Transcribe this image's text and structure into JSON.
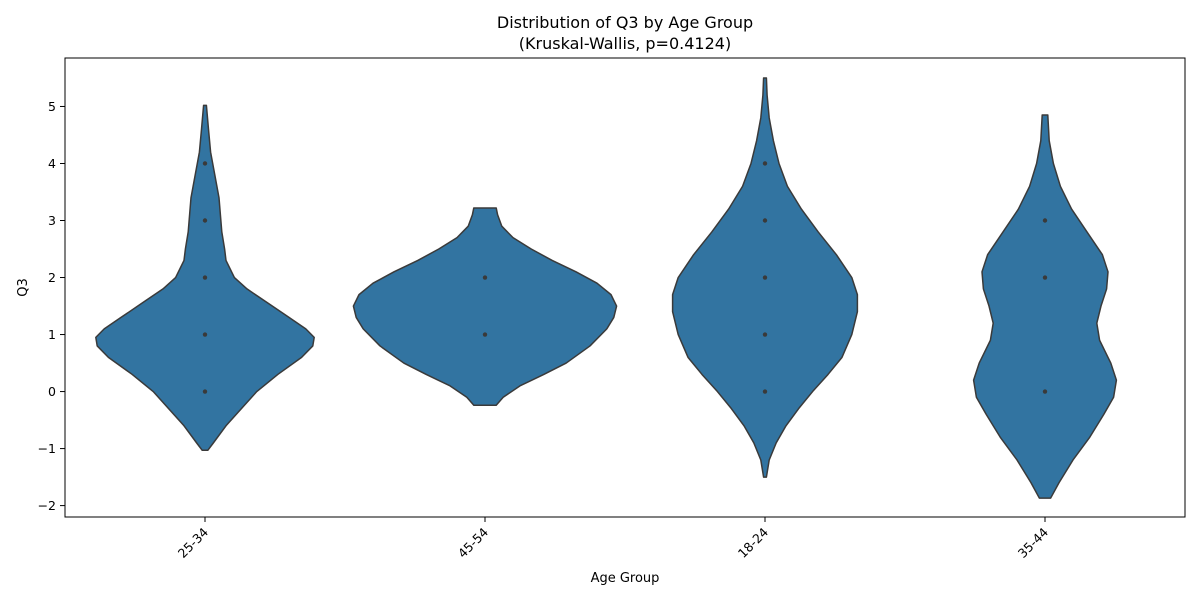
{
  "chart_data": {
    "type": "violin",
    "title": "Distribution of Q3 by Age Group",
    "subtitle": "(Kruskal-Wallis, p=0.4124)",
    "xlabel": "Age Group",
    "ylabel": "Q3",
    "categories": [
      "25-34",
      "45-54",
      "18-24",
      "35-44"
    ],
    "ylim": [
      -2.2,
      5.85
    ],
    "yticks": [
      -2,
      -1,
      0,
      1,
      2,
      3,
      4,
      5
    ],
    "ytick_labels": [
      "−2",
      "−1",
      "0",
      "1",
      "2",
      "3",
      "4",
      "5"
    ],
    "grid": false,
    "color": "#3274a1",
    "edge_color": "#3a3a3a",
    "violins": [
      {
        "name": "25-34",
        "points": [
          0,
          1,
          2,
          3,
          4
        ],
        "profile": [
          [
            -1.03,
            0.02
          ],
          [
            -0.9,
            0.06
          ],
          [
            -0.6,
            0.15
          ],
          [
            -0.3,
            0.26
          ],
          [
            0.0,
            0.37
          ],
          [
            0.3,
            0.52
          ],
          [
            0.6,
            0.69
          ],
          [
            0.8,
            0.77
          ],
          [
            0.95,
            0.78
          ],
          [
            1.1,
            0.72
          ],
          [
            1.3,
            0.6
          ],
          [
            1.55,
            0.45
          ],
          [
            1.8,
            0.3
          ],
          [
            2.0,
            0.21
          ],
          [
            2.3,
            0.15
          ],
          [
            2.5,
            0.14
          ],
          [
            2.8,
            0.12
          ],
          [
            3.1,
            0.11
          ],
          [
            3.4,
            0.1
          ],
          [
            3.8,
            0.07
          ],
          [
            4.2,
            0.04
          ],
          [
            4.6,
            0.025
          ],
          [
            5.02,
            0.01
          ]
        ]
      },
      {
        "name": "45-54",
        "points": [
          1,
          2
        ],
        "profile": [
          [
            -0.24,
            0.08
          ],
          [
            -0.1,
            0.13
          ],
          [
            0.1,
            0.25
          ],
          [
            0.3,
            0.42
          ],
          [
            0.5,
            0.58
          ],
          [
            0.8,
            0.75
          ],
          [
            1.1,
            0.87
          ],
          [
            1.3,
            0.92
          ],
          [
            1.5,
            0.94
          ],
          [
            1.7,
            0.9
          ],
          [
            1.9,
            0.8
          ],
          [
            2.1,
            0.65
          ],
          [
            2.3,
            0.48
          ],
          [
            2.5,
            0.33
          ],
          [
            2.7,
            0.2
          ],
          [
            2.9,
            0.12
          ],
          [
            3.1,
            0.09
          ],
          [
            3.22,
            0.08
          ]
        ]
      },
      {
        "name": "18-24",
        "points": [
          0,
          1,
          2,
          3,
          4
        ],
        "profile": [
          [
            -1.5,
            0.01
          ],
          [
            -1.2,
            0.03
          ],
          [
            -0.9,
            0.08
          ],
          [
            -0.6,
            0.15
          ],
          [
            -0.3,
            0.24
          ],
          [
            0.0,
            0.34
          ],
          [
            0.3,
            0.45
          ],
          [
            0.6,
            0.55
          ],
          [
            1.0,
            0.62
          ],
          [
            1.4,
            0.66
          ],
          [
            1.7,
            0.66
          ],
          [
            2.0,
            0.62
          ],
          [
            2.4,
            0.51
          ],
          [
            2.8,
            0.38
          ],
          [
            3.2,
            0.26
          ],
          [
            3.6,
            0.16
          ],
          [
            4.0,
            0.1
          ],
          [
            4.4,
            0.06
          ],
          [
            4.8,
            0.03
          ],
          [
            5.2,
            0.015
          ],
          [
            5.5,
            0.01
          ]
        ]
      },
      {
        "name": "35-44",
        "points": [
          0,
          2,
          3
        ],
        "profile": [
          [
            -1.87,
            0.04
          ],
          [
            -1.6,
            0.1
          ],
          [
            -1.2,
            0.2
          ],
          [
            -0.8,
            0.32
          ],
          [
            -0.4,
            0.42
          ],
          [
            -0.1,
            0.49
          ],
          [
            0.2,
            0.51
          ],
          [
            0.5,
            0.47
          ],
          [
            0.9,
            0.39
          ],
          [
            1.2,
            0.37
          ],
          [
            1.5,
            0.4
          ],
          [
            1.8,
            0.44
          ],
          [
            2.1,
            0.45
          ],
          [
            2.4,
            0.41
          ],
          [
            2.8,
            0.3
          ],
          [
            3.2,
            0.19
          ],
          [
            3.6,
            0.11
          ],
          [
            4.0,
            0.06
          ],
          [
            4.4,
            0.03
          ],
          [
            4.85,
            0.02
          ]
        ]
      }
    ]
  }
}
